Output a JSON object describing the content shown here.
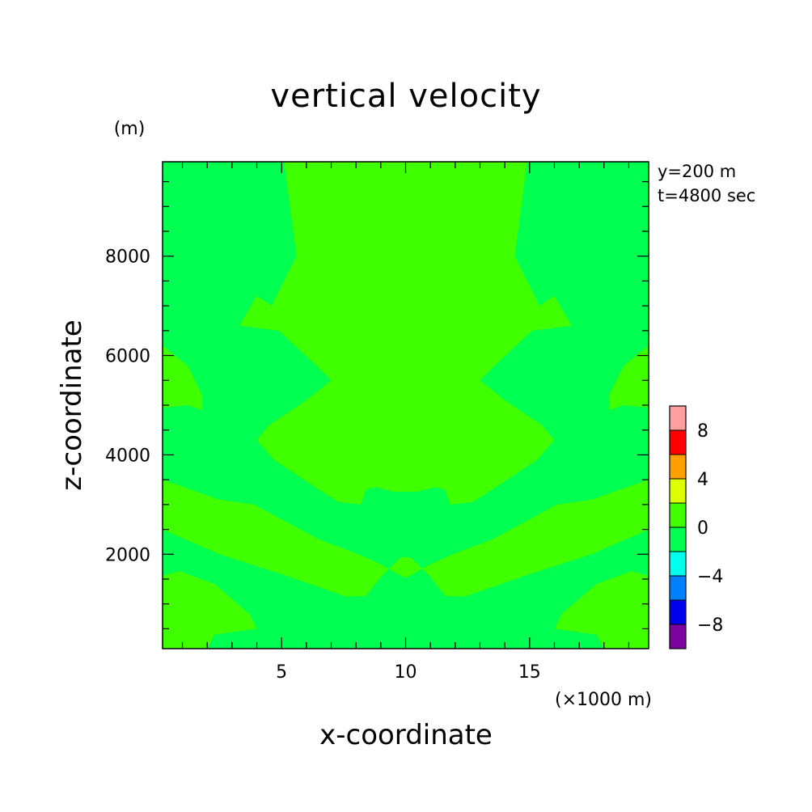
{
  "chart_data": {
    "type": "contour",
    "title": "vertical velocity",
    "xlabel": "x-coordinate",
    "ylabel": "z-coordinate",
    "x_unit": "(×1000 m)",
    "y_unit": "(m)",
    "xlim": [
      0.2,
      19.8
    ],
    "ylim": [
      100,
      9900
    ],
    "x_ticks": [
      5,
      10,
      15
    ],
    "y_ticks": [
      2000,
      4000,
      6000,
      8000
    ],
    "info": [
      "y=200 m",
      "t=4800 sec"
    ],
    "colorbar": {
      "levels": [
        -10,
        -8,
        -6,
        -4,
        -2,
        0,
        2,
        4,
        6,
        8,
        10
      ],
      "labels": [
        "8",
        "4",
        "0",
        "−4",
        "−8"
      ],
      "label_values": [
        8,
        4,
        0,
        -4,
        -8
      ],
      "colors": [
        "#7f00a0",
        "#0000ee",
        "#0080ff",
        "#00ffee",
        "#00ff50",
        "#40ff00",
        "#ddff00",
        "#ffa000",
        "#ff0000",
        "#ff9f9f"
      ]
    },
    "background_level": "0 to -2",
    "region_level": "0 to 2",
    "regions_in_data_units": [
      [
        [
          5.1,
          9900
        ],
        [
          5.6,
          8000
        ],
        [
          4.6,
          7000
        ],
        [
          4.0,
          7200
        ],
        [
          3.3,
          6600
        ],
        [
          4.9,
          6500
        ],
        [
          6.4,
          5800
        ],
        [
          7.0,
          5500
        ],
        [
          6.0,
          5100
        ],
        [
          4.5,
          4600
        ],
        [
          4.0,
          4300
        ],
        [
          4.7,
          3900
        ],
        [
          6.2,
          3400
        ],
        [
          7.3,
          3050
        ],
        [
          8.2,
          3000
        ],
        [
          8.4,
          3300
        ],
        [
          8.8,
          3350
        ],
        [
          9.5,
          3260
        ],
        [
          10.5,
          3260
        ],
        [
          11.2,
          3350
        ],
        [
          11.6,
          3300
        ],
        [
          11.8,
          3000
        ],
        [
          12.7,
          3050
        ],
        [
          13.8,
          3400
        ],
        [
          15.3,
          3900
        ],
        [
          16.0,
          4300
        ],
        [
          15.5,
          4600
        ],
        [
          14.0,
          5100
        ],
        [
          13.0,
          5500
        ],
        [
          13.6,
          5800
        ],
        [
          15.1,
          6500
        ],
        [
          16.7,
          6600
        ],
        [
          16.0,
          7200
        ],
        [
          15.4,
          7000
        ],
        [
          14.4,
          8000
        ],
        [
          14.9,
          9900
        ]
      ],
      [
        [
          0.2,
          6200
        ],
        [
          1.2,
          5800
        ],
        [
          1.8,
          5200
        ],
        [
          1.8,
          4900
        ],
        [
          1.2,
          5000
        ],
        [
          0.2,
          4950
        ]
      ],
      [
        [
          19.8,
          6200
        ],
        [
          18.8,
          5800
        ],
        [
          18.2,
          5200
        ],
        [
          18.2,
          4900
        ],
        [
          18.8,
          5000
        ],
        [
          19.8,
          4950
        ]
      ],
      [
        [
          0.2,
          3500
        ],
        [
          2.5,
          3100
        ],
        [
          3.9,
          3000
        ],
        [
          6.5,
          2300
        ],
        [
          8.1,
          2000
        ],
        [
          9.0,
          1800
        ],
        [
          9.7,
          1600
        ],
        [
          10.0,
          1520
        ],
        [
          10.3,
          1600
        ],
        [
          11.0,
          1800
        ],
        [
          11.9,
          2000
        ],
        [
          13.5,
          2300
        ],
        [
          16.1,
          3000
        ],
        [
          17.5,
          3100
        ],
        [
          19.8,
          3500
        ],
        [
          19.8,
          2500
        ],
        [
          17.5,
          2000
        ],
        [
          15.0,
          1600
        ],
        [
          12.4,
          1150
        ],
        [
          11.6,
          1160
        ],
        [
          11.0,
          1540
        ],
        [
          10.2,
          1940
        ],
        [
          9.8,
          1940
        ],
        [
          9.0,
          1540
        ],
        [
          8.4,
          1160
        ],
        [
          7.6,
          1150
        ],
        [
          5.0,
          1600
        ],
        [
          2.5,
          2000
        ],
        [
          0.2,
          2500
        ]
      ],
      [
        [
          0.2,
          1570
        ],
        [
          0.9,
          1660
        ],
        [
          2.3,
          1400
        ],
        [
          3.7,
          800
        ],
        [
          4.0,
          500
        ],
        [
          2.3,
          380
        ],
        [
          2.0,
          100
        ],
        [
          0.2,
          100
        ]
      ],
      [
        [
          19.8,
          1570
        ],
        [
          19.1,
          1660
        ],
        [
          17.7,
          1400
        ],
        [
          16.3,
          800
        ],
        [
          16.0,
          500
        ],
        [
          17.7,
          380
        ],
        [
          18.0,
          100
        ],
        [
          19.8,
          100
        ]
      ],
      [
        [
          7.2,
          5900
        ],
        [
          7.8,
          5800
        ],
        [
          8.2,
          5500
        ],
        [
          7.6,
          5400
        ],
        [
          7.1,
          5600
        ]
      ],
      [
        [
          12.8,
          5900
        ],
        [
          12.2,
          5800
        ],
        [
          11.8,
          5500
        ],
        [
          12.4,
          5400
        ],
        [
          12.9,
          5600
        ]
      ]
    ]
  }
}
